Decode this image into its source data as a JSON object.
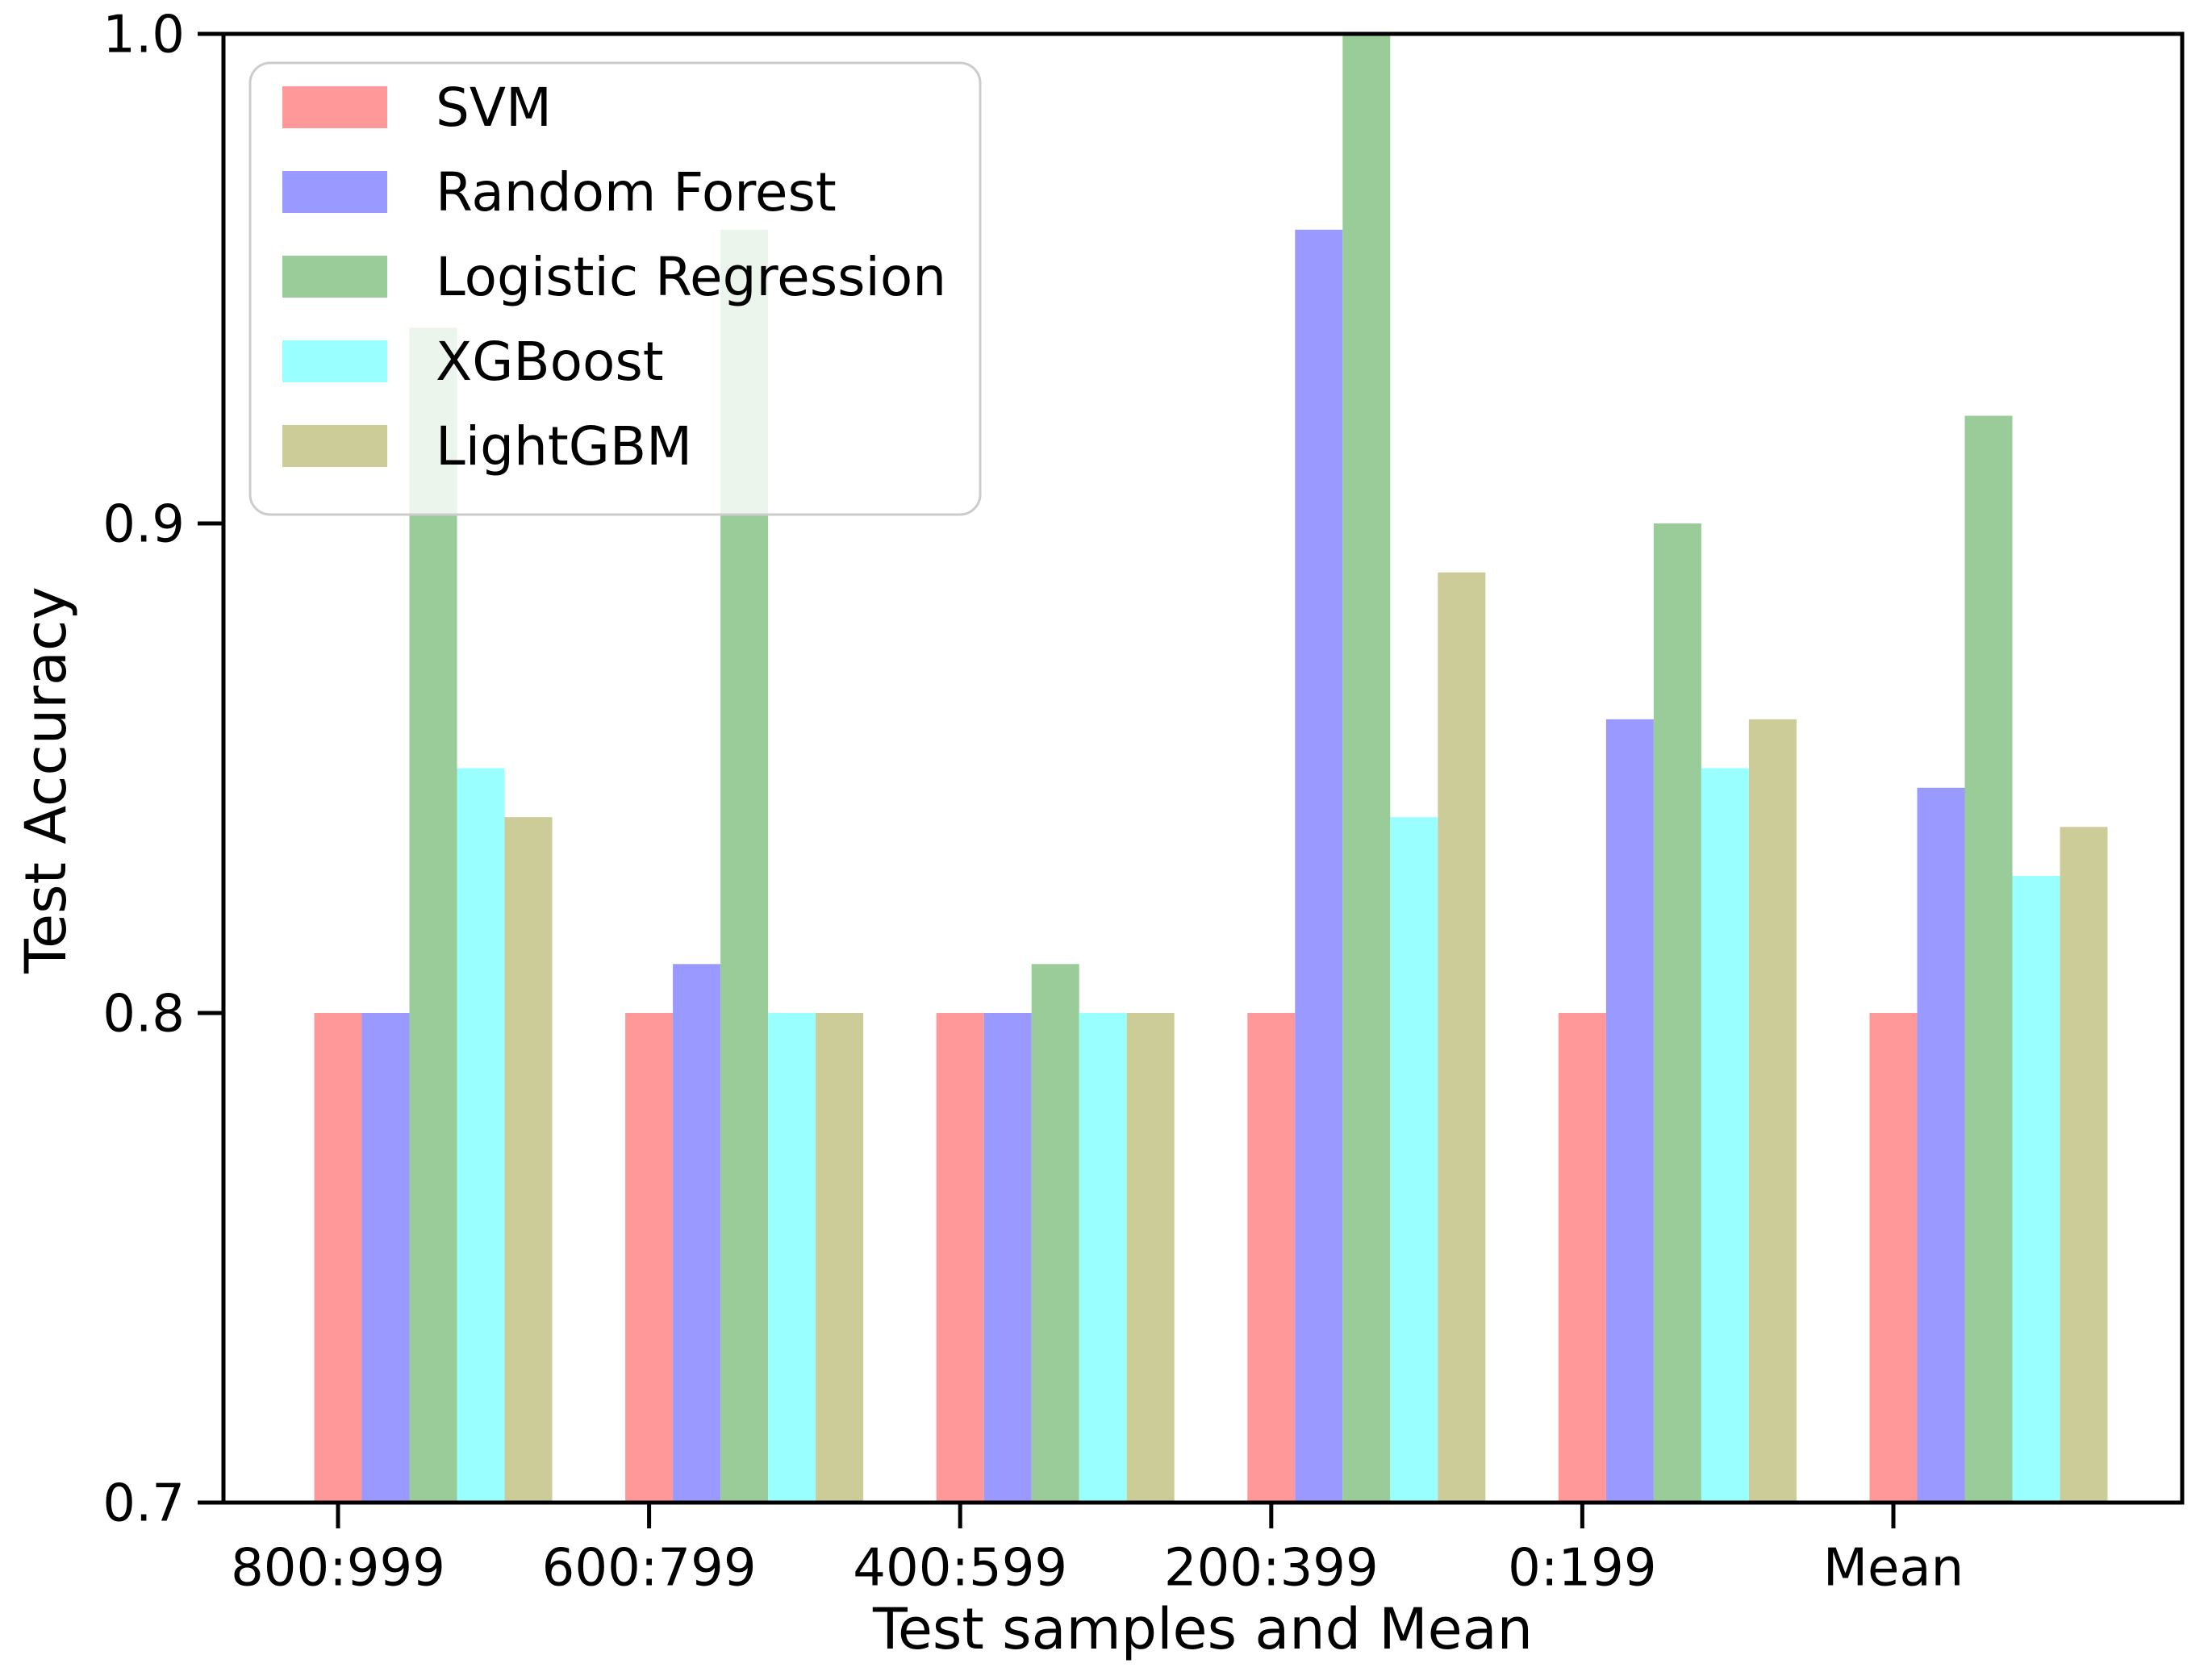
{
  "chart_data": {
    "type": "bar",
    "title": "",
    "xlabel": "Test samples and Mean",
    "ylabel": "Test Accuracy",
    "categories": [
      "800:999",
      "600:799",
      "400:599",
      "200:399",
      "0:199",
      "Mean"
    ],
    "series": [
      {
        "name": "SVM",
        "color": "#ff9999",
        "values": [
          0.8,
          0.8,
          0.8,
          0.8,
          0.8,
          0.8
        ]
      },
      {
        "name": "Random Forest",
        "color": "#9999ff",
        "values": [
          0.8,
          0.81,
          0.8,
          0.96,
          0.86,
          0.846
        ]
      },
      {
        "name": "Logistic Regression",
        "color": "#99cc99",
        "values": [
          0.94,
          0.96,
          0.81,
          1.0,
          0.9,
          0.922
        ]
      },
      {
        "name": "XGBoost",
        "color": "#99ffff",
        "values": [
          0.85,
          0.8,
          0.8,
          0.84,
          0.85,
          0.828
        ]
      },
      {
        "name": "LightGBM",
        "color": "#cccc99",
        "values": [
          0.84,
          0.8,
          0.8,
          0.89,
          0.86,
          0.838
        ]
      }
    ],
    "ylim": [
      0.7,
      1.0
    ],
    "yticks": [
      0.7,
      0.8,
      0.9,
      1.0
    ],
    "ytick_labels": [
      "0.7",
      "0.8",
      "0.9",
      "1.0"
    ],
    "legend_position": "upper left",
    "grid": false,
    "colors": {
      "axis": "#000000",
      "legend_border": "#cccccc",
      "legend_background": "rgba(255,255,255,0.8)"
    }
  }
}
